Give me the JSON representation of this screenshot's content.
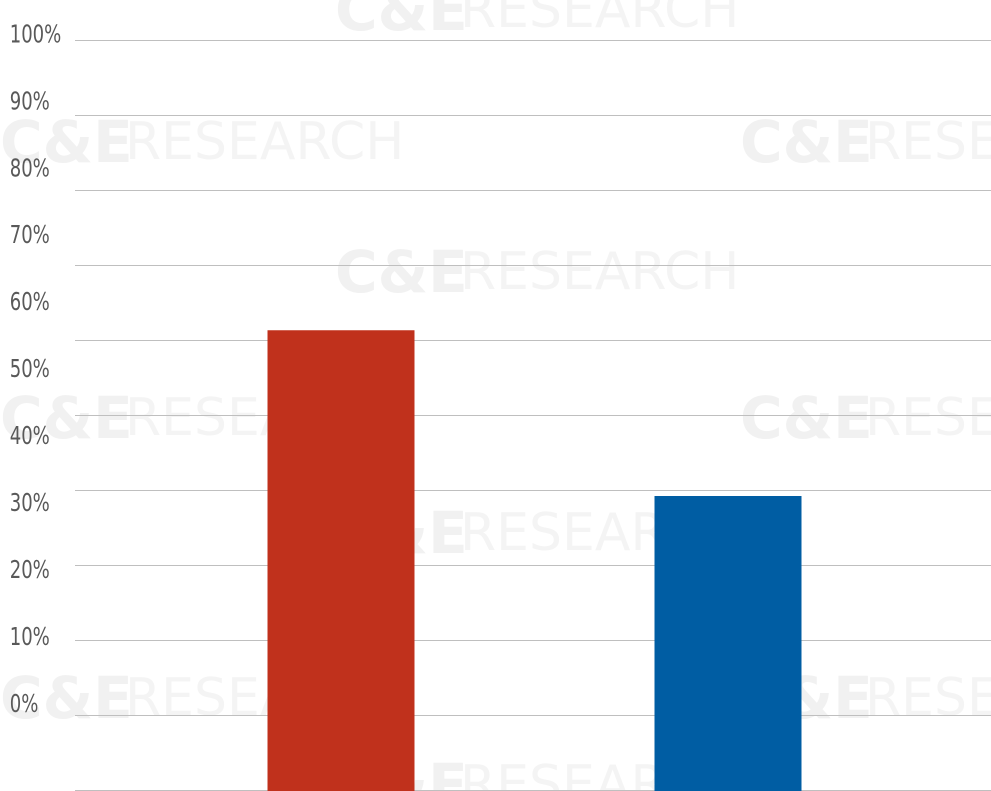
{
  "chart_data": {
    "type": "bar",
    "categories": [
      "",
      ""
    ],
    "values": [
      61.3,
      39.2
    ],
    "bar_colors": [
      "#c0311c",
      "#005da3"
    ],
    "ylim": [
      0,
      100
    ],
    "y_ticks": [
      0,
      10,
      20,
      30,
      40,
      50,
      60,
      70,
      80,
      90,
      100
    ],
    "y_tick_labels": [
      "0%",
      "10%",
      "20%",
      "30%",
      "40%",
      "50%",
      "60%",
      "70%",
      "80%",
      "90%",
      "100%"
    ],
    "grid": true,
    "gridline_color": "#bfbfbf",
    "title": "",
    "xlabel": "",
    "ylabel": ""
  },
  "watermark": {
    "brand": "C&E",
    "word": "RESEARCH",
    "color": "#f2f2f2"
  }
}
